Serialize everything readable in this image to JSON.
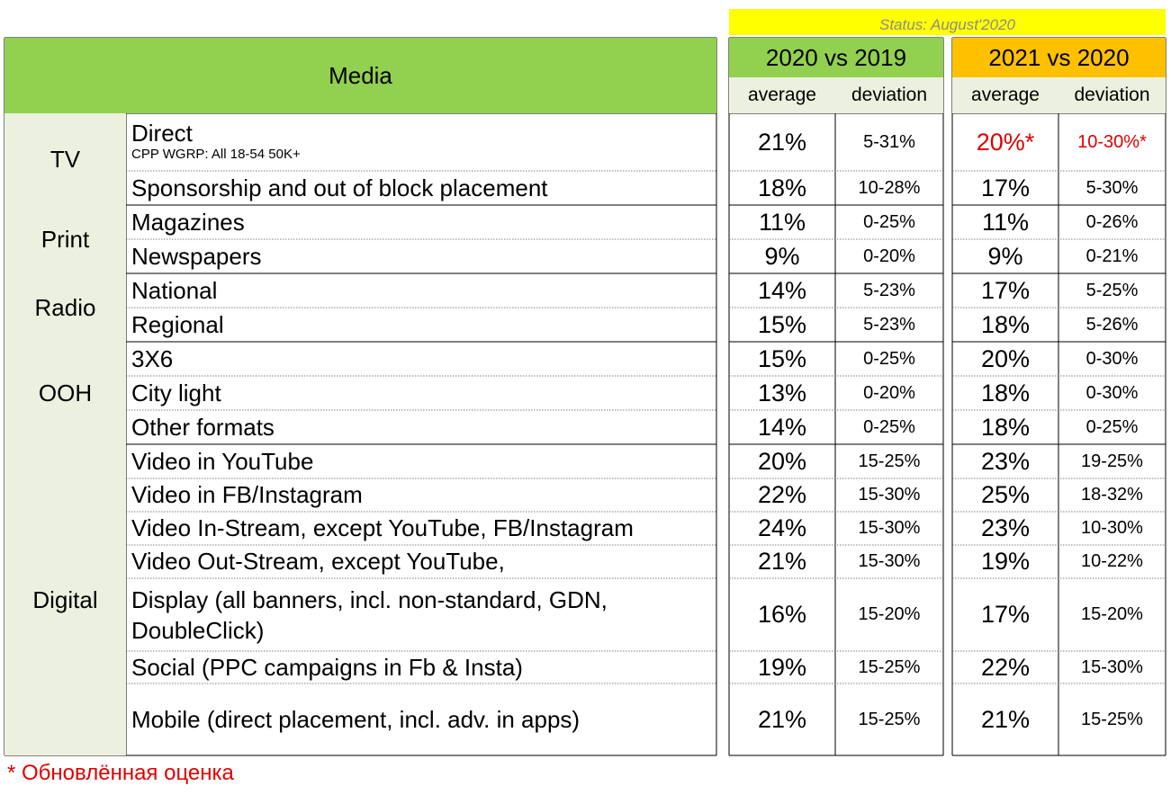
{
  "status": "Status: August'2020",
  "header": {
    "media": "Media",
    "group1": "2020 vs 2019",
    "group2": "2021 vs 2020",
    "average": "average",
    "deviation": "deviation"
  },
  "categories": [
    "TV",
    "Print",
    "Radio",
    "OOH",
    "Digital"
  ],
  "rows": [
    {
      "label": "Direct",
      "note": "CPP WGRP: All 18-54 50K+",
      "avg1": "21%",
      "dev1": "5-31%",
      "avg2": "20%*",
      "dev2": "10-30%*"
    },
    {
      "label": "Sponsorship and out of block placement",
      "avg1": "18%",
      "dev1": "10-28%",
      "avg2": "17%",
      "dev2": "5-30%"
    },
    {
      "label": "Magazines",
      "avg1": "11%",
      "dev1": "0-25%",
      "avg2": "11%",
      "dev2": "0-26%"
    },
    {
      "label": "Newspapers",
      "avg1": "9%",
      "dev1": "0-20%",
      "avg2": "9%",
      "dev2": "0-21%"
    },
    {
      "label": "National",
      "avg1": "14%",
      "dev1": "5-23%",
      "avg2": "17%",
      "dev2": "5-25%"
    },
    {
      "label": "Regional",
      "avg1": "15%",
      "dev1": "5-23%",
      "avg2": "18%",
      "dev2": "5-26%"
    },
    {
      "label": "3X6",
      "avg1": "15%",
      "dev1": "0-25%",
      "avg2": "20%",
      "dev2": "0-30%"
    },
    {
      "label": "City light",
      "avg1": "13%",
      "dev1": "0-20%",
      "avg2": "18%",
      "dev2": "0-30%"
    },
    {
      "label": "Other formats",
      "avg1": "14%",
      "dev1": "0-25%",
      "avg2": "18%",
      "dev2": "0-25%"
    },
    {
      "label": "Video in YouTube",
      "avg1": "20%",
      "dev1": "15-25%",
      "avg2": "23%",
      "dev2": "19-25%"
    },
    {
      "label": "Video in FB/Instagram",
      "avg1": "22%",
      "dev1": "15-30%",
      "avg2": "25%",
      "dev2": "18-32%"
    },
    {
      "label": "Video In-Stream, except YouTube, FB/Instagram",
      "avg1": "24%",
      "dev1": "15-30%",
      "avg2": "23%",
      "dev2": "10-30%"
    },
    {
      "label": "Video Out-Stream, except YouTube,",
      "avg1": "21%",
      "dev1": "15-30%",
      "avg2": "19%",
      "dev2": "10-22%"
    },
    {
      "label": "Display (all banners, incl. non-standard, GDN, DoubleClick)",
      "avg1": "16%",
      "dev1": "15-20%",
      "avg2": "17%",
      "dev2": "15-20%"
    },
    {
      "label": "Social (PPC campaigns in Fb & Insta)",
      "avg1": "19%",
      "dev1": "15-25%",
      "avg2": "22%",
      "dev2": "15-30%"
    },
    {
      "label": "Mobile (direct placement, incl. adv. in apps)",
      "avg1": "21%",
      "dev1": "15-25%",
      "avg2": "21%",
      "dev2": "15-25%"
    }
  ],
  "footnote": "* Обновлённая оценка",
  "colors": {
    "header_green": "#92d050",
    "header_orange": "#ffc000",
    "light": "#ebf1de",
    "status_bg": "#ffff00",
    "accent_red": "#e00000"
  }
}
